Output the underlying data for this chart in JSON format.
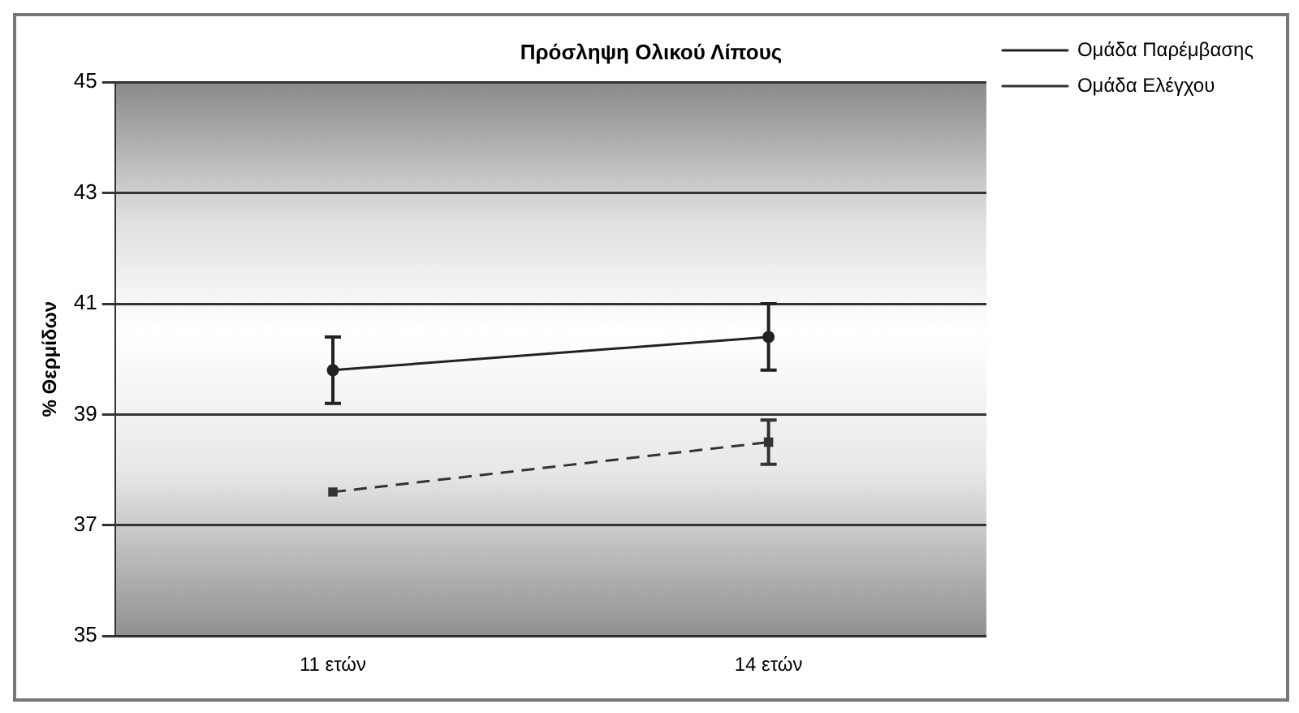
{
  "chart_data": {
    "type": "line",
    "title": "Πρόσληψη Ολικού Λίπους",
    "ylabel": "% Θερμίδων",
    "categories": [
      "11 ετών",
      "14 ετών"
    ],
    "series": [
      {
        "name": "Ομάδα Παρέμβασης",
        "color": "#222222",
        "values": [
          39.8,
          40.4
        ],
        "errors": [
          0.6,
          0.6
        ],
        "marker": "circle",
        "line_style": "solid"
      },
      {
        "name": "Ομάδα Ελέγχου",
        "color": "#333333",
        "values": [
          37.6,
          38.5
        ],
        "errors": [
          null,
          0.4
        ],
        "marker": "square",
        "line_style": "dashed"
      }
    ],
    "ylim": [
      35,
      45
    ],
    "yticks": [
      35,
      37,
      39,
      41,
      43,
      45
    ],
    "grid": "y",
    "legend": "top right"
  }
}
